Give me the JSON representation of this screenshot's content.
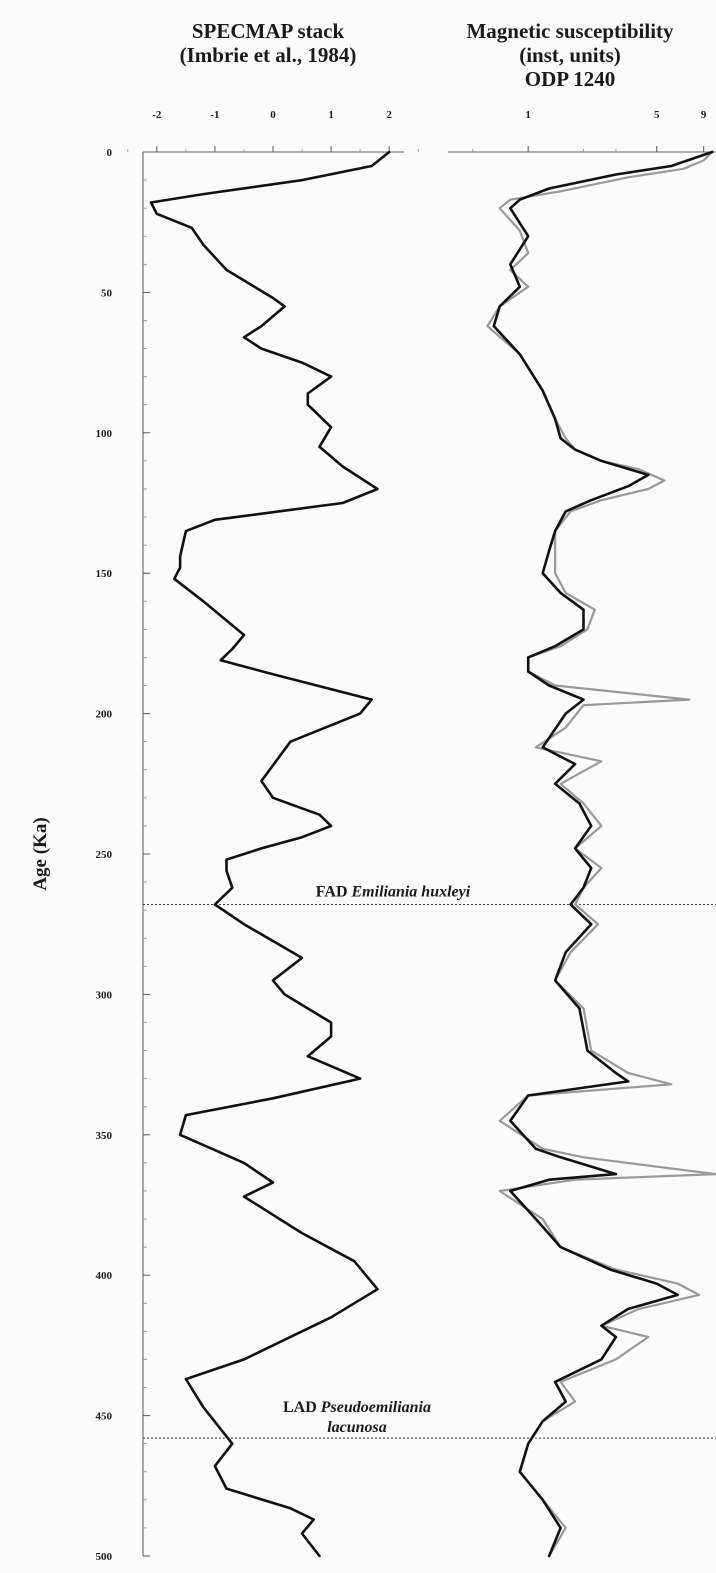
{
  "chart_data": {
    "type": "line",
    "ylabel": "Age (Ka)",
    "y_ticks": [
      0,
      50,
      100,
      150,
      200,
      250,
      300,
      350,
      400,
      450,
      500
    ],
    "ylim": [
      0,
      500
    ],
    "y_inverted": true,
    "grid": false,
    "panels": [
      {
        "id": "specmap",
        "title_lines": [
          "SPECMAP stack",
          "(Imbrie et al., 1984)"
        ],
        "x_ticks": [
          "-2",
          "-1",
          "0",
          "1",
          "2"
        ],
        "xlim": [
          -2.6,
          2.6
        ],
        "scale": "linear",
        "series": [
          {
            "color": "#111111",
            "points": [
              [
                2.0,
                0
              ],
              [
                1.7,
                5
              ],
              [
                0.5,
                10
              ],
              [
                -1.2,
                15
              ],
              [
                -2.1,
                18
              ],
              [
                -2.0,
                22
              ],
              [
                -1.4,
                27
              ],
              [
                -1.2,
                33
              ],
              [
                -0.8,
                42
              ],
              [
                0.0,
                52
              ],
              [
                0.2,
                55
              ],
              [
                -0.2,
                62
              ],
              [
                -0.5,
                66
              ],
              [
                -0.2,
                70
              ],
              [
                0.5,
                75
              ],
              [
                1.0,
                80
              ],
              [
                0.6,
                86
              ],
              [
                0.6,
                90
              ],
              [
                1.0,
                98
              ],
              [
                0.8,
                105
              ],
              [
                1.2,
                112
              ],
              [
                1.8,
                120
              ],
              [
                1.2,
                125
              ],
              [
                -1.0,
                131
              ],
              [
                -1.5,
                135
              ],
              [
                -1.6,
                144
              ],
              [
                -1.6,
                148
              ],
              [
                -1.7,
                152
              ],
              [
                -1.2,
                160
              ],
              [
                -0.5,
                172
              ],
              [
                -0.7,
                177
              ],
              [
                -0.9,
                181
              ],
              [
                0.0,
                186
              ],
              [
                1.7,
                195
              ],
              [
                1.5,
                200
              ],
              [
                0.3,
                210
              ],
              [
                -0.2,
                224
              ],
              [
                0.0,
                230
              ],
              [
                0.8,
                236
              ],
              [
                1.0,
                240
              ],
              [
                0.5,
                244
              ],
              [
                -0.2,
                248
              ],
              [
                -0.8,
                252
              ],
              [
                -0.8,
                256
              ],
              [
                -0.7,
                262
              ],
              [
                -1.0,
                268
              ],
              [
                -0.5,
                275
              ],
              [
                0.5,
                287
              ],
              [
                0.0,
                295
              ],
              [
                0.2,
                300
              ],
              [
                1.0,
                310
              ],
              [
                1.0,
                315
              ],
              [
                0.6,
                322
              ],
              [
                1.5,
                330
              ],
              [
                0.0,
                337
              ],
              [
                -1.5,
                343
              ],
              [
                -1.6,
                350
              ],
              [
                -0.5,
                360
              ],
              [
                0.0,
                367
              ],
              [
                -0.5,
                372
              ],
              [
                0.5,
                385
              ],
              [
                1.4,
                395
              ],
              [
                1.8,
                405
              ],
              [
                1.0,
                415
              ],
              [
                -0.5,
                430
              ],
              [
                -1.5,
                437
              ],
              [
                -1.2,
                447
              ],
              [
                -0.7,
                460
              ],
              [
                -1.0,
                468
              ],
              [
                -0.8,
                476
              ],
              [
                0.3,
                483
              ],
              [
                0.7,
                487
              ],
              [
                0.5,
                492
              ],
              [
                0.8,
                500
              ]
            ]
          }
        ]
      },
      {
        "id": "magsus",
        "title_lines": [
          "Magnetic susceptibility",
          "(inst, units)",
          "ODP 1240"
        ],
        "x_ticks": [
          "1",
          "5",
          "9"
        ],
        "x_tick_values": [
          1,
          5,
          9
        ],
        "xlim": [
          0.3,
          10.5
        ],
        "scale": "log",
        "series": [
          {
            "color": "#999999",
            "points": [
              [
                10.0,
                0
              ],
              [
                9.0,
                3
              ],
              [
                7.0,
                6
              ],
              [
                3.5,
                9
              ],
              [
                1.5,
                14
              ],
              [
                0.8,
                17
              ],
              [
                0.7,
                20
              ],
              [
                0.9,
                28
              ],
              [
                1.0,
                36
              ],
              [
                0.8,
                42
              ],
              [
                1.0,
                48
              ],
              [
                0.7,
                55
              ],
              [
                0.6,
                62
              ],
              [
                0.9,
                72
              ],
              [
                1.2,
                85
              ],
              [
                1.4,
                95
              ],
              [
                1.6,
                102
              ],
              [
                1.8,
                106
              ],
              [
                2.5,
                110
              ],
              [
                4.0,
                113
              ],
              [
                5.5,
                117
              ],
              [
                4.5,
                120
              ],
              [
                2.5,
                124
              ],
              [
                1.7,
                128
              ],
              [
                1.4,
                135
              ],
              [
                1.4,
                142
              ],
              [
                1.4,
                150
              ],
              [
                1.6,
                157
              ],
              [
                2.3,
                163
              ],
              [
                2.1,
                170
              ],
              [
                1.5,
                176
              ],
              [
                1.0,
                180
              ],
              [
                1.0,
                185
              ],
              [
                1.4,
                190
              ],
              [
                7.5,
                195
              ],
              [
                2.0,
                197
              ],
              [
                1.6,
                205
              ],
              [
                1.1,
                212
              ],
              [
                2.5,
                217
              ],
              [
                1.5,
                225
              ],
              [
                2.0,
                232
              ],
              [
                2.5,
                240
              ],
              [
                1.8,
                248
              ],
              [
                2.5,
                255
              ],
              [
                2.0,
                262
              ],
              [
                1.8,
                268
              ],
              [
                2.4,
                275
              ],
              [
                1.7,
                285
              ],
              [
                1.4,
                295
              ],
              [
                2.0,
                305
              ],
              [
                2.2,
                320
              ],
              [
                3.5,
                328
              ],
              [
                6.0,
                332
              ],
              [
                1.0,
                336
              ],
              [
                0.7,
                345
              ],
              [
                1.2,
                355
              ],
              [
                2.0,
                358
              ],
              [
                10.5,
                364
              ],
              [
                1.8,
                366
              ],
              [
                0.7,
                370
              ],
              [
                1.2,
                380
              ],
              [
                1.5,
                390
              ],
              [
                3.0,
                398
              ],
              [
                6.5,
                403
              ],
              [
                8.5,
                407
              ],
              [
                4.0,
                412
              ],
              [
                2.5,
                418
              ],
              [
                4.5,
                422
              ],
              [
                3.0,
                430
              ],
              [
                1.5,
                438
              ],
              [
                1.8,
                445
              ],
              [
                1.2,
                452
              ],
              [
                1.0,
                460
              ],
              [
                0.9,
                470
              ],
              [
                1.2,
                480
              ],
              [
                1.6,
                490
              ],
              [
                1.3,
                500
              ]
            ]
          },
          {
            "color": "#111111",
            "points": [
              [
                10.0,
                0
              ],
              [
                6.0,
                5
              ],
              [
                3.0,
                8
              ],
              [
                1.3,
                13
              ],
              [
                0.9,
                17
              ],
              [
                0.8,
                20
              ],
              [
                1.0,
                30
              ],
              [
                0.8,
                40
              ],
              [
                0.9,
                48
              ],
              [
                0.7,
                55
              ],
              [
                0.65,
                62
              ],
              [
                0.9,
                72
              ],
              [
                1.2,
                85
              ],
              [
                1.4,
                95
              ],
              [
                1.5,
                102
              ],
              [
                1.8,
                106
              ],
              [
                2.5,
                110
              ],
              [
                4.5,
                115
              ],
              [
                3.5,
                119
              ],
              [
                2.2,
                124
              ],
              [
                1.6,
                128
              ],
              [
                1.4,
                135
              ],
              [
                1.3,
                142
              ],
              [
                1.2,
                150
              ],
              [
                1.5,
                157
              ],
              [
                2.0,
                163
              ],
              [
                2.0,
                170
              ],
              [
                1.4,
                176
              ],
              [
                1.0,
                180
              ],
              [
                1.0,
                185
              ],
              [
                1.3,
                190
              ],
              [
                2.0,
                195
              ],
              [
                1.6,
                200
              ],
              [
                1.2,
                212
              ],
              [
                1.8,
                218
              ],
              [
                1.4,
                225
              ],
              [
                1.9,
                232
              ],
              [
                2.2,
                240
              ],
              [
                1.8,
                248
              ],
              [
                2.2,
                255
              ],
              [
                2.0,
                262
              ],
              [
                1.7,
                268
              ],
              [
                2.2,
                275
              ],
              [
                1.6,
                285
              ],
              [
                1.4,
                295
              ],
              [
                1.9,
                305
              ],
              [
                2.1,
                320
              ],
              [
                3.0,
                328
              ],
              [
                3.5,
                331
              ],
              [
                1.0,
                336
              ],
              [
                0.8,
                345
              ],
              [
                1.1,
                355
              ],
              [
                1.5,
                358
              ],
              [
                3.0,
                364
              ],
              [
                1.3,
                366
              ],
              [
                0.8,
                370
              ],
              [
                1.1,
                380
              ],
              [
                1.5,
                390
              ],
              [
                2.8,
                398
              ],
              [
                5.0,
                403
              ],
              [
                6.5,
                407
              ],
              [
                3.5,
                412
              ],
              [
                2.5,
                418
              ],
              [
                3.0,
                422
              ],
              [
                2.5,
                430
              ],
              [
                1.4,
                438
              ],
              [
                1.6,
                445
              ],
              [
                1.2,
                452
              ],
              [
                1.0,
                460
              ],
              [
                0.9,
                470
              ],
              [
                1.2,
                480
              ],
              [
                1.5,
                490
              ],
              [
                1.3,
                500
              ]
            ]
          }
        ]
      }
    ],
    "annotations": [
      {
        "id": "fad",
        "age": 268,
        "segments": [
          {
            "text": "FAD ",
            "italic": false
          },
          {
            "text": "Emiliania huxleyi",
            "italic": true
          }
        ]
      },
      {
        "id": "lad",
        "age": 458,
        "segments": [
          {
            "text": "LAD ",
            "italic": false
          },
          {
            "text": "Pseudoemiliania",
            "italic": true
          }
        ],
        "second_line": "lacunosa"
      }
    ]
  }
}
